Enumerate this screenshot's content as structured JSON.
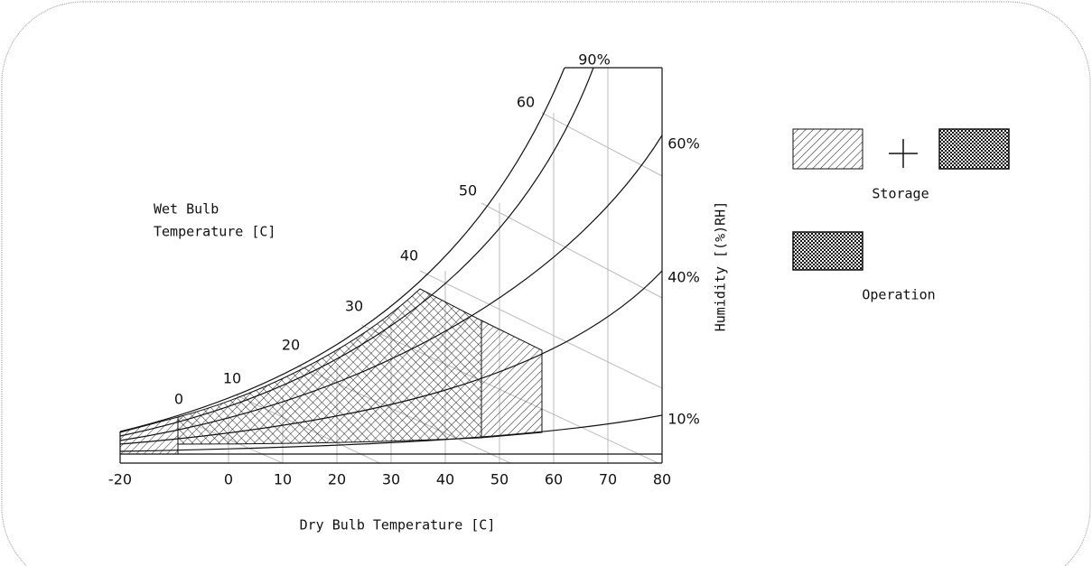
{
  "axis": {
    "label": "Dry Bulb Temperature [C]",
    "ticks": [
      "-20",
      "0",
      "10",
      "20",
      "30",
      "40",
      "50",
      "60",
      "70",
      "80"
    ]
  },
  "humidity": {
    "label": "Humidity [(%)RH]",
    "curves": [
      "90%",
      "60%",
      "40%",
      "10%"
    ]
  },
  "wet_bulb": {
    "label_lines": [
      "Wet Bulb",
      "Temperature [C]"
    ],
    "ticks": [
      "0",
      "10",
      "20",
      "30",
      "40",
      "50",
      "60"
    ]
  },
  "legend": {
    "storage": "Storage",
    "operation": "Operation"
  }
}
